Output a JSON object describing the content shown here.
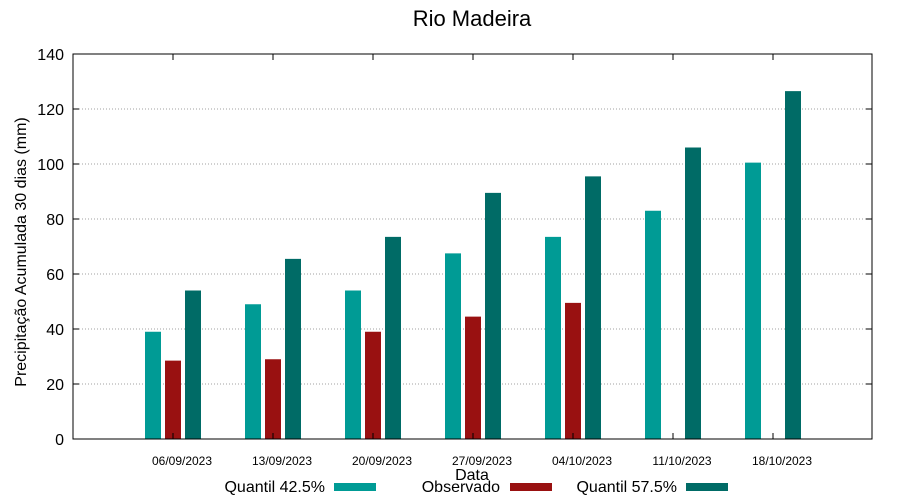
{
  "chart_data": {
    "type": "bar",
    "title": "Rio Madeira",
    "xlabel": "Data",
    "ylabel": "Precipitação Acumulada 30 dias (mm)",
    "ylim": [
      0,
      140
    ],
    "yticks": [
      0,
      20,
      40,
      60,
      80,
      100,
      120,
      140
    ],
    "grid": "horizontal dotted",
    "legend_position": "bottom",
    "categories": [
      "06/09/2023",
      "13/09/2023",
      "20/09/2023",
      "27/09/2023",
      "04/10/2023",
      "11/10/2023",
      "18/10/2023"
    ],
    "series": [
      {
        "name": "Quantil 42.5%",
        "color": "#009b95",
        "values": [
          39,
          49,
          54,
          67.5,
          73.5,
          83,
          100.5
        ]
      },
      {
        "name": "Observado",
        "color": "#991111",
        "values": [
          28.5,
          29,
          39,
          44.5,
          49.5,
          null,
          null
        ]
      },
      {
        "name": "Quantil 57.5%",
        "color": "#006b66",
        "values": [
          54,
          65.5,
          73.5,
          89.5,
          95.5,
          106,
          126.5
        ]
      }
    ]
  }
}
